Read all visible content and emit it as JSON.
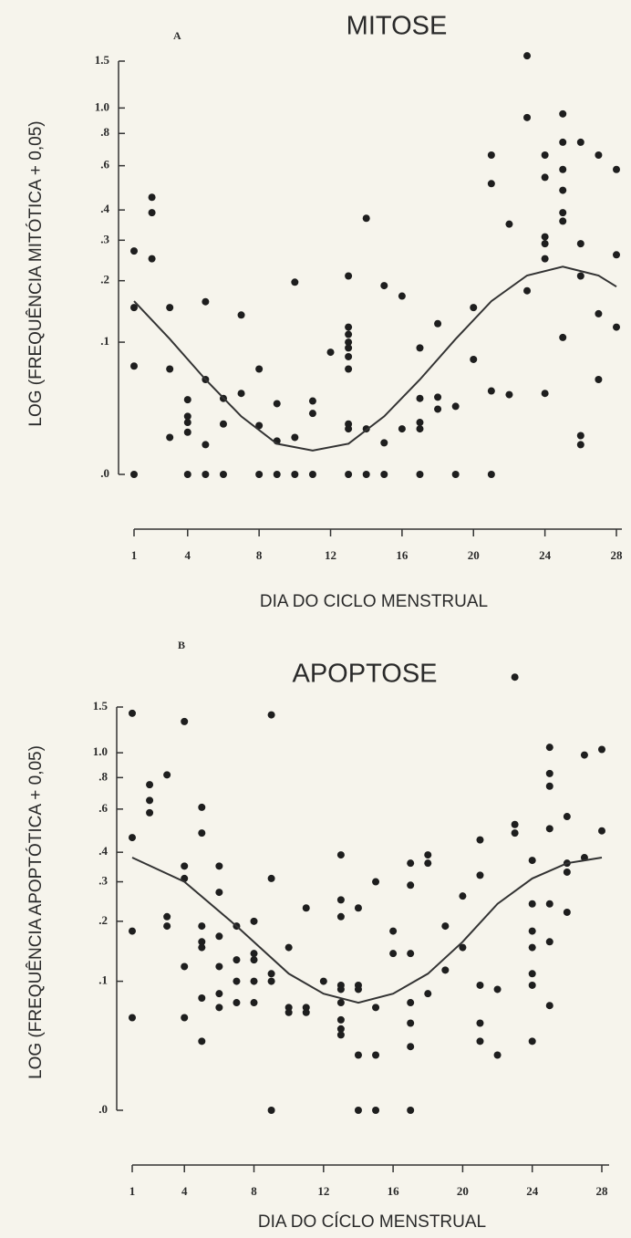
{
  "chart_data": [
    {
      "type": "scatter",
      "panel_label": "A",
      "title": "MITOSE",
      "xlabel": "DIA DO CICLO MENSTRUAL",
      "ylabel": "LOG (FREQUÊNCIA MITÓTICA + 0,05)",
      "yscale": "log",
      "y_offset": 0.05,
      "color": "#1e1e1e",
      "xlim": [
        1,
        28
      ],
      "xticks": [
        1,
        4,
        8,
        12,
        16,
        20,
        24,
        28
      ],
      "ylim": [
        0,
        1.5
      ],
      "yticks": [
        {
          "value": 0,
          "label": ".0"
        },
        {
          "value": 0.1,
          "label": ".1"
        },
        {
          "value": 0.2,
          "label": ".2"
        },
        {
          "value": 0.3,
          "label": ".3"
        },
        {
          "value": 0.4,
          "label": ".4"
        },
        {
          "value": 0.6,
          "label": ".6"
        },
        {
          "value": 0.8,
          "label": ".8"
        },
        {
          "value": 1,
          "label": "1.0"
        },
        1.5
      ],
      "x": [
        1,
        1,
        1,
        1,
        2,
        2,
        2,
        3,
        3,
        3,
        4,
        4,
        4,
        4,
        4,
        5,
        5,
        5,
        5,
        6,
        6,
        6,
        7,
        7,
        8,
        8,
        8,
        9,
        9,
        9,
        10,
        10,
        10,
        11,
        11,
        11,
        12,
        13,
        13,
        13,
        13,
        13,
        13,
        13,
        13,
        13,
        13,
        14,
        14,
        14,
        15,
        15,
        15,
        16,
        16,
        17,
        17,
        17,
        17,
        17,
        18,
        18,
        18,
        19,
        19,
        20,
        20,
        21,
        21,
        21,
        21,
        22,
        22,
        23,
        23,
        23,
        24,
        24,
        24,
        24,
        24,
        24,
        25,
        25,
        25,
        25,
        25,
        25,
        25,
        26,
        26,
        26,
        26,
        26,
        27,
        27,
        27,
        28,
        28,
        28
      ],
      "values": [
        0.27,
        0.15,
        0.073,
        0,
        0.45,
        0.39,
        0.25,
        0.15,
        0.07,
        0.018,
        0.043,
        0.031,
        0.027,
        0.021,
        0,
        0.16,
        0.06,
        0.014,
        0,
        0.044,
        0.026,
        0,
        0.138,
        0.048,
        0.07,
        0.025,
        0,
        0.04,
        0.016,
        0,
        0.197,
        0.018,
        0,
        0.042,
        0.033,
        0,
        0.088,
        0.21,
        0.12,
        0.11,
        0.1,
        0.093,
        0.083,
        0.07,
        0.026,
        0.023,
        0,
        0.37,
        0.023,
        0,
        0.19,
        0.015,
        0,
        0.17,
        0.023,
        0.093,
        0.044,
        0.027,
        0.023,
        0,
        0.125,
        0.045,
        0.036,
        0.038,
        0,
        0.15,
        0.08,
        0.66,
        0.51,
        0.05,
        0,
        0.35,
        0.047,
        1.57,
        0.92,
        0.18,
        0.66,
        0.54,
        0.31,
        0.29,
        0.25,
        0.048,
        0.95,
        0.74,
        0.58,
        0.48,
        0.39,
        0.36,
        0.106,
        0.74,
        0.29,
        0.21,
        0.019,
        0.014,
        0.66,
        0.14,
        0.06,
        0.58,
        0.26,
        0.12
      ],
      "fit_x": [
        1,
        3,
        5,
        7,
        9,
        11,
        13,
        15,
        17,
        19,
        21,
        23,
        25,
        27,
        28
      ],
      "fit_values": [
        0.161,
        0.104,
        0.06,
        0.031,
        0.0145,
        0.011,
        0.0145,
        0.031,
        0.06,
        0.104,
        0.161,
        0.211,
        0.231,
        0.211,
        0.188
      ]
    },
    {
      "type": "scatter",
      "panel_label": "B",
      "title": "APOPTOSE",
      "xlabel": "DIA DO CÍCLO MENSTRUAL",
      "ylabel": "LOG (FREQUÊNCIA APOPTÓTICA + 0,05)",
      "yscale": "log",
      "y_offset": 0.05,
      "color": "#1e1e1e",
      "xlim": [
        1,
        28
      ],
      "xticks": [
        1,
        4,
        8,
        12,
        16,
        20,
        24,
        28
      ],
      "ylim": [
        0,
        1.5
      ],
      "yticks": [
        {
          "value": 0,
          "label": ".0"
        },
        {
          "value": 0.1,
          "label": ".1"
        },
        {
          "value": 0.2,
          "label": ".2"
        },
        {
          "value": 0.3,
          "label": ".3"
        },
        {
          "value": 0.4,
          "label": ".4"
        },
        {
          "value": 0.6,
          "label": ".6"
        },
        {
          "value": 0.8,
          "label": ".8"
        },
        {
          "value": 1,
          "label": "1.0"
        },
        1.5
      ],
      "x": [
        1,
        1,
        1,
        1,
        2,
        2,
        2,
        3,
        3,
        3,
        4,
        4,
        4,
        4,
        4,
        5,
        5,
        5,
        5,
        5,
        5,
        5,
        6,
        6,
        6,
        6,
        6,
        6,
        7,
        7,
        7,
        7,
        8,
        8,
        8,
        8,
        8,
        9,
        9,
        9,
        9,
        9,
        10,
        10,
        10,
        11,
        11,
        11,
        12,
        13,
        13,
        13,
        13,
        13,
        13,
        13,
        13,
        13,
        14,
        14,
        14,
        14,
        14,
        15,
        15,
        15,
        15,
        16,
        16,
        17,
        17,
        17,
        17,
        17,
        17,
        17,
        18,
        18,
        18,
        19,
        19,
        20,
        20,
        21,
        21,
        21,
        21,
        21,
        22,
        22,
        23,
        23,
        23,
        24,
        24,
        24,
        24,
        24,
        24,
        24,
        25,
        25,
        25,
        25,
        25,
        25,
        25,
        26,
        26,
        26,
        26,
        27,
        27,
        28,
        28
      ],
      "values": [
        1.42,
        0.46,
        0.18,
        0.06,
        0.75,
        0.65,
        0.58,
        0.82,
        0.21,
        0.19,
        1.32,
        0.35,
        0.31,
        0.12,
        0.06,
        0.61,
        0.48,
        0.19,
        0.16,
        0.15,
        0.08,
        0.04,
        0.35,
        0.27,
        0.17,
        0.12,
        0.085,
        0.07,
        0.19,
        0.1,
        0.075,
        0.13,
        0.2,
        0.14,
        0.13,
        0.1,
        0.075,
        1.4,
        0.31,
        0.11,
        0.1,
        0,
        0.15,
        0.07,
        0.065,
        0.23,
        0.07,
        0.065,
        0.1,
        0.39,
        0.25,
        0.21,
        0.095,
        0.09,
        0.075,
        0.058,
        0.05,
        0.045,
        0.23,
        0.095,
        0.09,
        0.03,
        0,
        0.3,
        0.07,
        0.03,
        0,
        0.18,
        0.14,
        0.36,
        0.29,
        0.14,
        0.075,
        0.055,
        0.036,
        0,
        0.39,
        0.36,
        0.085,
        0.19,
        0.115,
        0.26,
        0.15,
        0.45,
        0.32,
        0.095,
        0.055,
        0.04,
        0.09,
        0.03,
        1.95,
        0.52,
        0.48,
        0.37,
        0.24,
        0.18,
        0.15,
        0.11,
        0.095,
        0.04,
        1.05,
        0.83,
        0.74,
        0.5,
        0.24,
        0.16,
        0.072,
        0.56,
        0.36,
        0.33,
        0.22,
        0.98,
        0.38,
        1.03,
        0.49
      ],
      "fit_x": [
        1,
        4,
        7,
        10,
        12,
        14,
        16,
        18,
        20,
        22,
        24,
        26,
        28
      ],
      "fit_values": [
        0.38,
        0.3,
        0.19,
        0.11,
        0.085,
        0.075,
        0.085,
        0.11,
        0.16,
        0.24,
        0.31,
        0.36,
        0.38
      ]
    }
  ]
}
